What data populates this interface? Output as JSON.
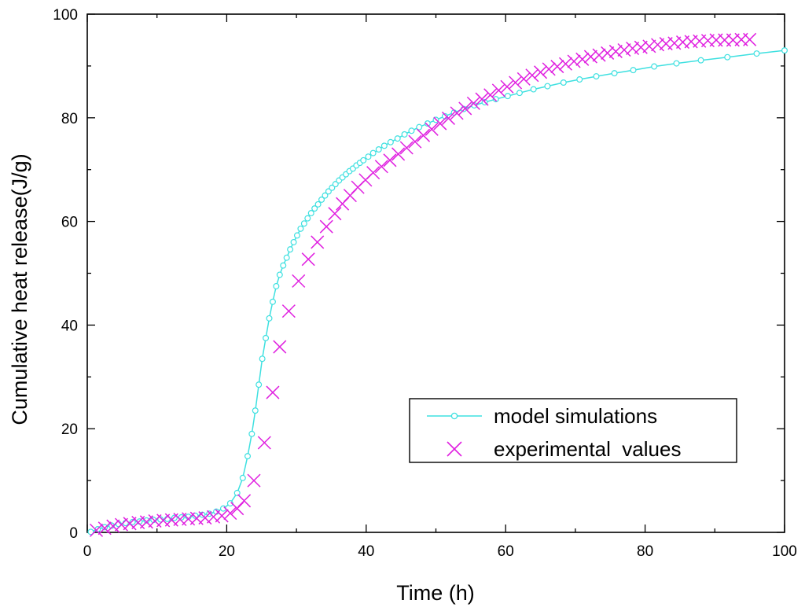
{
  "chart_data": {
    "type": "line",
    "title": "",
    "xlabel": "Time (h)",
    "ylabel": "Cumulative heat release(J/g)",
    "xlim": [
      0,
      100
    ],
    "ylim": [
      0,
      100
    ],
    "x_ticks": [
      0,
      20,
      40,
      60,
      80,
      100
    ],
    "y_ticks": [
      0,
      20,
      40,
      60,
      80,
      100
    ],
    "x_tick_labels": [
      "0",
      "20",
      "40",
      "60",
      "80",
      "100"
    ],
    "y_tick_labels": [
      "0",
      "20",
      "40",
      "60",
      "80",
      "100"
    ],
    "grid": false,
    "legend": {
      "position": "bottom-right",
      "entries": [
        "model simulations",
        "experimental  values"
      ]
    },
    "series": [
      {
        "name": "model simulations",
        "color": "#3ee0e0",
        "marker": "circle",
        "x": [
          0.5,
          1.5,
          2.5,
          3.5,
          4.5,
          5.5,
          6.5,
          7.5,
          8.5,
          9.5,
          10.5,
          11.5,
          12.5,
          13.5,
          14.5,
          15.5,
          16.5,
          17.5,
          18.5,
          19.5,
          20.5,
          21.5,
          22.3,
          23.0,
          23.6,
          24.1,
          24.6,
          25.1,
          25.6,
          26.1,
          26.6,
          27.1,
          27.6,
          28.1,
          28.6,
          29.1,
          29.6,
          30.1,
          30.6,
          31.1,
          31.6,
          32.1,
          32.6,
          33.1,
          33.6,
          34.1,
          34.6,
          35.1,
          35.6,
          36.1,
          36.6,
          37.1,
          37.6,
          38.1,
          38.6,
          39.1,
          39.6,
          40.3,
          41.0,
          41.8,
          42.6,
          43.5,
          44.5,
          45.5,
          46.5,
          47.6,
          48.8,
          50.0,
          51.3,
          52.6,
          54.0,
          55.5,
          57.0,
          58.6,
          60.3,
          62.0,
          64.0,
          66.0,
          68.3,
          70.6,
          73.0,
          75.6,
          78.3,
          81.3,
          84.5,
          88.0,
          91.8,
          96.0,
          100.0
        ],
        "values": [
          0.1,
          0.6,
          1.0,
          1.3,
          1.6,
          1.8,
          2.0,
          2.1,
          2.3,
          2.4,
          2.5,
          2.6,
          2.8,
          2.9,
          3.0,
          3.2,
          3.4,
          3.6,
          4.0,
          4.6,
          5.6,
          7.6,
          10.5,
          14.7,
          19.0,
          23.5,
          28.5,
          33.5,
          37.5,
          41.3,
          44.5,
          47.5,
          49.7,
          51.5,
          53.0,
          54.6,
          56.0,
          57.3,
          58.6,
          59.6,
          60.6,
          61.6,
          62.5,
          63.3,
          64.2,
          65.0,
          65.8,
          66.5,
          67.2,
          67.9,
          68.5,
          69.1,
          69.7,
          70.2,
          70.8,
          71.3,
          71.8,
          72.5,
          73.2,
          73.9,
          74.6,
          75.3,
          76.0,
          76.8,
          77.5,
          78.2,
          78.9,
          79.6,
          80.3,
          81.0,
          81.7,
          82.4,
          83.0,
          83.6,
          84.2,
          84.8,
          85.5,
          86.1,
          86.8,
          87.4,
          88.0,
          88.6,
          89.2,
          89.9,
          90.5,
          91.1,
          91.7,
          92.4,
          93.0
        ]
      },
      {
        "name": "experimental  values",
        "color": "#e020e0",
        "marker": "x",
        "x": [
          1.3,
          2.5,
          3.7,
          4.9,
          6.1,
          7.3,
          8.5,
          9.7,
          10.9,
          12.1,
          13.3,
          14.5,
          15.7,
          16.9,
          18.1,
          19.3,
          20.5,
          21.5,
          22.5,
          23.9,
          25.4,
          26.6,
          27.6,
          28.9,
          30.3,
          31.7,
          33.0,
          34.3,
          35.5,
          36.6,
          37.7,
          38.8,
          39.9,
          41.0,
          42.2,
          43.4,
          44.6,
          45.8,
          47.0,
          48.2,
          49.4,
          50.6,
          51.8,
          53.0,
          54.2,
          55.4,
          56.6,
          57.8,
          59.0,
          60.2,
          61.4,
          62.6,
          63.8,
          65.0,
          66.2,
          67.4,
          68.6,
          69.8,
          71.0,
          72.2,
          73.4,
          74.6,
          75.8,
          77.0,
          78.2,
          79.4,
          80.6,
          81.8,
          83.0,
          84.2,
          85.4,
          86.6,
          87.8,
          89.0,
          90.2,
          91.4,
          92.6,
          93.8,
          95.0
        ],
        "values": [
          0.4,
          0.8,
          1.2,
          1.5,
          1.7,
          1.9,
          2.0,
          2.2,
          2.3,
          2.4,
          2.5,
          2.6,
          2.7,
          2.8,
          3.0,
          3.2,
          3.7,
          4.6,
          6.1,
          10.0,
          17.3,
          27.0,
          35.8,
          42.7,
          48.5,
          52.7,
          56.0,
          59.0,
          61.5,
          63.4,
          65.0,
          66.6,
          68.0,
          69.4,
          70.6,
          71.8,
          73.0,
          74.2,
          75.4,
          76.6,
          77.8,
          78.9,
          79.9,
          80.9,
          81.8,
          82.8,
          83.6,
          84.4,
          85.3,
          86.0,
          86.8,
          87.5,
          88.2,
          88.8,
          89.4,
          89.9,
          90.4,
          90.9,
          91.3,
          91.8,
          92.1,
          92.5,
          92.8,
          93.1,
          93.4,
          93.6,
          93.8,
          94.1,
          94.3,
          94.4,
          94.6,
          94.7,
          94.8,
          94.9,
          95.0,
          95.0,
          95.0,
          95.1,
          95.1
        ]
      }
    ]
  }
}
